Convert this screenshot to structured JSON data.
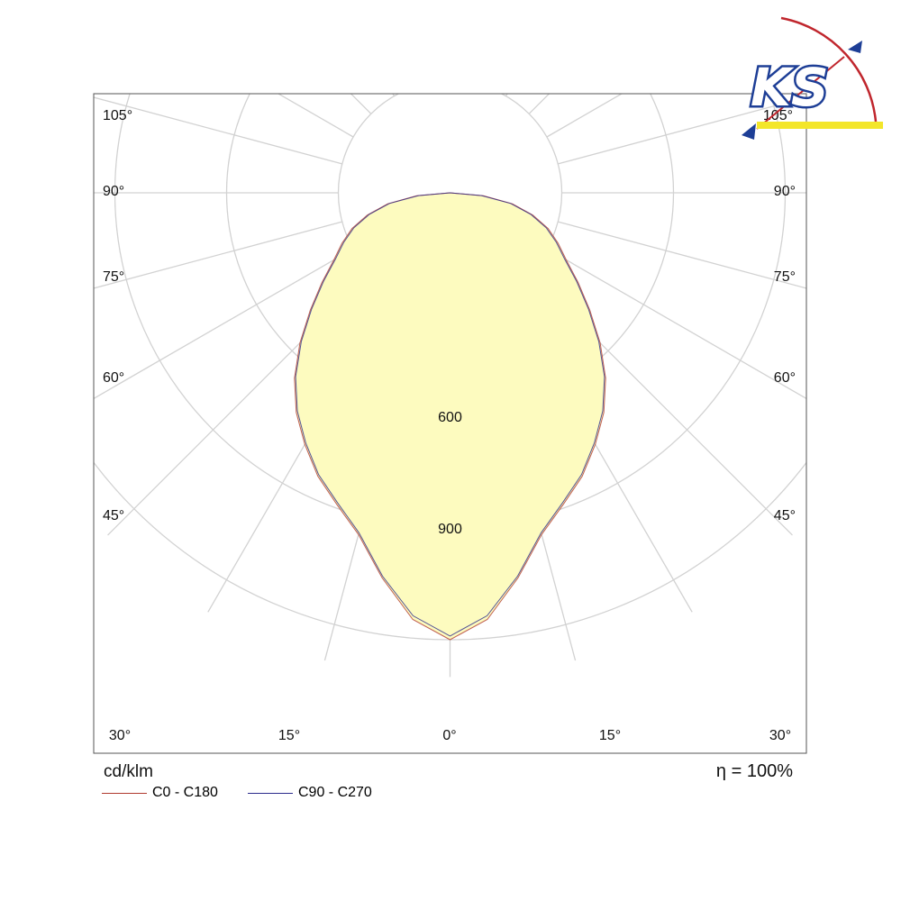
{
  "chart_data": {
    "type": "polar",
    "unit_label": "cd/klm",
    "efficiency": {
      "symbol": "η",
      "value": "100%"
    },
    "radial_ticks": [
      {
        "value": 300,
        "label": ""
      },
      {
        "value": 600,
        "label": "600"
      },
      {
        "value": 900,
        "label": "900"
      },
      {
        "value": 1200,
        "label": ""
      }
    ],
    "angle_labels": {
      "side": [
        "105°",
        "90°",
        "75°",
        "60°",
        "45°"
      ],
      "bottom": [
        "30°",
        "15°",
        "0°",
        "15°",
        "30°"
      ],
      "right_top": "105°"
    },
    "series": [
      {
        "name": "C0 - C180",
        "color": "#b03a2e",
        "angles": [
          0,
          5,
          10,
          15,
          20,
          25,
          30,
          35,
          40,
          45,
          50,
          55,
          60,
          65,
          70,
          75,
          80,
          85,
          90
        ],
        "values": [
          1200,
          1150,
          1050,
          950,
          890,
          840,
          780,
          720,
          650,
          570,
          490,
          420,
          360,
          320,
          280,
          230,
          170,
          90,
          0
        ]
      },
      {
        "name": "C90 - C270",
        "color": "#2b2b8c",
        "angles": [
          0,
          5,
          10,
          15,
          20,
          25,
          30,
          35,
          40,
          45,
          50,
          55,
          60,
          65,
          70,
          75,
          80,
          85,
          90
        ],
        "values": [
          1190,
          1140,
          1045,
          945,
          885,
          835,
          775,
          715,
          645,
          565,
          485,
          415,
          355,
          315,
          275,
          225,
          165,
          85,
          0
        ]
      }
    ],
    "fill_color": "#fdfbbf",
    "grid": true
  }
}
